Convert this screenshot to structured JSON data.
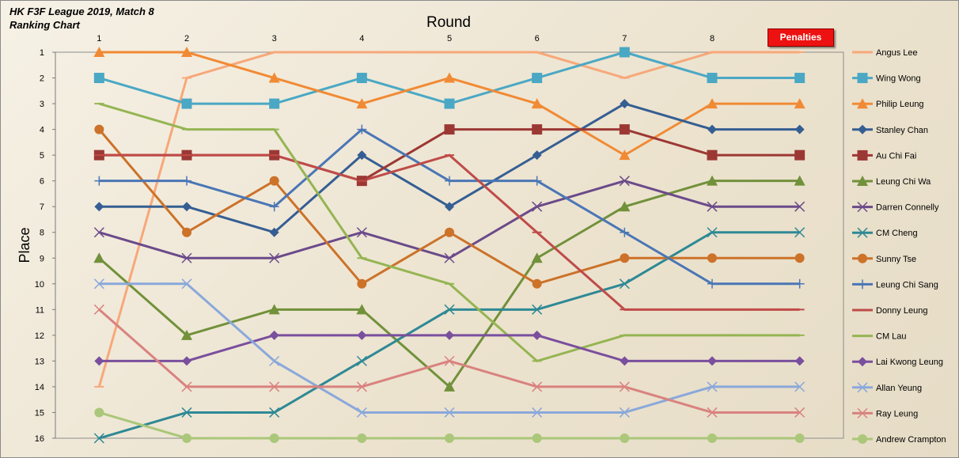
{
  "title_line1": "HK F3F League 2019, Match 8",
  "title_line2": "Ranking Chart",
  "penalties_label": "Penalties",
  "chart_data": {
    "type": "line",
    "xlabel": "Round",
    "ylabel": "Place",
    "x": [
      1,
      2,
      3,
      4,
      5,
      6,
      7,
      8,
      9
    ],
    "x_tick_labels": [
      "1",
      "2",
      "3",
      "4",
      "5",
      "6",
      "7",
      "8",
      ""
    ],
    "ylim": [
      1,
      16
    ],
    "y_inverted": true,
    "y_ticks": [
      1,
      2,
      3,
      4,
      5,
      6,
      7,
      8,
      9,
      10,
      11,
      12,
      13,
      14,
      15,
      16
    ],
    "grid": false,
    "legend_position": "right",
    "series": [
      {
        "name": "Angus Lee",
        "color": "#f7a87a",
        "marker": "dash",
        "values": [
          14,
          2,
          1,
          1,
          1,
          1,
          2,
          1,
          1
        ]
      },
      {
        "name": "Wing Wong",
        "color": "#4aa8c4",
        "marker": "square",
        "values": [
          2,
          3,
          3,
          2,
          3,
          2,
          1,
          2,
          2
        ]
      },
      {
        "name": "Philip Leung",
        "color": "#f18a34",
        "marker": "triangle",
        "values": [
          1,
          1,
          2,
          3,
          2,
          3,
          5,
          3,
          3
        ]
      },
      {
        "name": "Stanley Chan",
        "color": "#355e93",
        "marker": "diamond",
        "values": [
          7,
          7,
          8,
          5,
          7,
          5,
          3,
          4,
          4
        ]
      },
      {
        "name": "Au Chi Fai",
        "color": "#9c3834",
        "marker": "square",
        "values": [
          5,
          5,
          5,
          6,
          4,
          4,
          4,
          5,
          5
        ]
      },
      {
        "name": "Leung Chi Wa",
        "color": "#71913a",
        "marker": "triangle",
        "values": [
          9,
          12,
          11,
          11,
          14,
          9,
          7,
          6,
          6
        ]
      },
      {
        "name": "Darren Connelly",
        "color": "#6b4a8a",
        "marker": "x",
        "values": [
          8,
          9,
          9,
          8,
          9,
          7,
          6,
          7,
          7
        ]
      },
      {
        "name": "CM Cheng",
        "color": "#2e8995",
        "marker": "x",
        "values": [
          16,
          15,
          15,
          13,
          11,
          11,
          10,
          8,
          8
        ]
      },
      {
        "name": "Sunny Tse",
        "color": "#cc7229",
        "marker": "circle",
        "values": [
          4,
          8,
          6,
          10,
          8,
          10,
          9,
          9,
          9
        ]
      },
      {
        "name": "Leung Chi Sang",
        "color": "#4a76b5",
        "marker": "plus",
        "values": [
          6,
          6,
          7,
          4,
          6,
          6,
          8,
          10,
          10
        ]
      },
      {
        "name": "Donny Leung",
        "color": "#bf4b48",
        "marker": "dash",
        "values": [
          5,
          5,
          5,
          6,
          5,
          8,
          11,
          11,
          11
        ]
      },
      {
        "name": "CM Lau",
        "color": "#95b553",
        "marker": "dash",
        "values": [
          3,
          4,
          4,
          9,
          10,
          13,
          12,
          12,
          12
        ]
      },
      {
        "name": "Lai Kwong Leung",
        "color": "#7a4f9d",
        "marker": "diamond",
        "values": [
          13,
          13,
          12,
          12,
          12,
          12,
          13,
          13,
          13
        ]
      },
      {
        "name": "Allan Yeung",
        "color": "#8aa8db",
        "marker": "x",
        "values": [
          10,
          10,
          13,
          15,
          15,
          15,
          15,
          14,
          14
        ]
      },
      {
        "name": "Ray Leung",
        "color": "#d9827f",
        "marker": "x",
        "values": [
          11,
          14,
          14,
          14,
          13,
          14,
          14,
          15,
          15
        ]
      },
      {
        "name": "Andrew Crampton",
        "color": "#abc77a",
        "marker": "circle",
        "values": [
          15,
          16,
          16,
          16,
          16,
          16,
          16,
          16,
          16
        ]
      }
    ]
  }
}
